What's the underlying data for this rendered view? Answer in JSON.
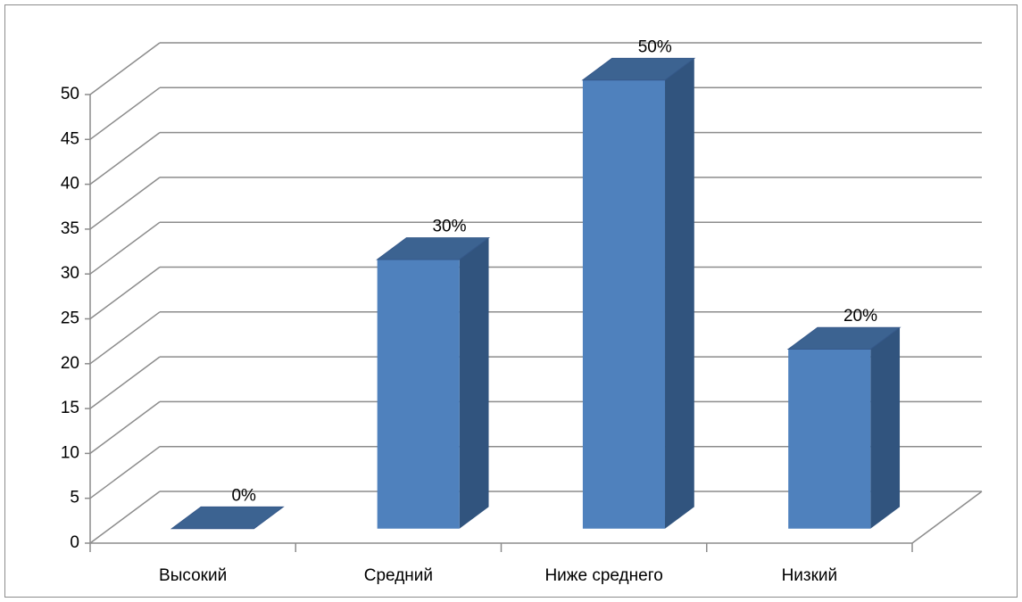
{
  "chart_data": {
    "type": "bar3d",
    "categories": [
      "Высокий",
      "Средний",
      "Ниже среднего",
      "Низкий"
    ],
    "values": [
      0,
      30,
      50,
      20
    ],
    "value_labels": [
      "0%",
      "30%",
      "50%",
      "20%"
    ],
    "color": "#4f81bd",
    "ylim": [
      0,
      50
    ],
    "yticks": [
      0,
      5,
      10,
      15,
      20,
      25,
      30,
      35,
      40,
      45,
      50
    ],
    "grid": true
  }
}
